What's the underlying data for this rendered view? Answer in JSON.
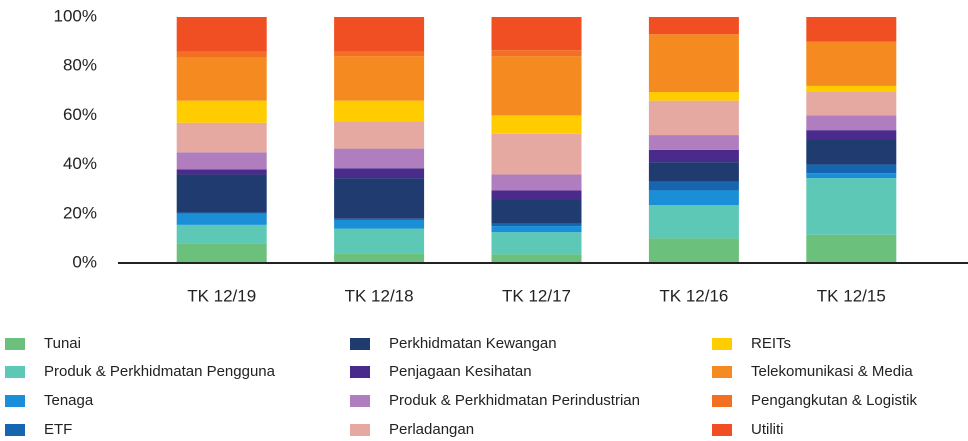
{
  "chart_data": {
    "type": "stacked_bar",
    "categories": [
      "TK 12/19",
      "TK 12/18",
      "TK 12/17",
      "TK 12/16",
      "TK 12/15"
    ],
    "series": [
      {
        "name": "Tunai",
        "color": "#6bc17b",
        "values": [
          8,
          4,
          3.5,
          10,
          11.5
        ]
      },
      {
        "name": "Produk & Perkhidmatan Pengguna",
        "color": "#5ec8b7",
        "values": [
          7.5,
          10,
          9,
          13.5,
          23
        ]
      },
      {
        "name": "Tenaga",
        "color": "#1a8fd8",
        "values": [
          4.5,
          3.5,
          2.5,
          6,
          2
        ]
      },
      {
        "name": "ETF",
        "color": "#1565b0",
        "values": [
          0.5,
          0.5,
          1,
          3.5,
          3.5
        ]
      },
      {
        "name": "Perkhidmatan Kewangan",
        "color": "#1f3b70",
        "values": [
          15.5,
          16.5,
          10,
          8,
          10
        ]
      },
      {
        "name": "Penjagaan Kesihatan",
        "color": "#4a2b8c",
        "values": [
          2,
          4,
          3.5,
          5,
          4
        ]
      },
      {
        "name": "Produk & Perkhidmatan Perindustrian",
        "color": "#b07dbf",
        "values": [
          7,
          8,
          6.5,
          6,
          6
        ]
      },
      {
        "name": "Perladangan",
        "color": "#e5a9a1",
        "values": [
          12,
          11,
          16.5,
          14,
          9.5
        ]
      },
      {
        "name": "REITs",
        "color": "#ffcc00",
        "values": [
          9,
          8.5,
          7.5,
          3.5,
          2.5
        ]
      },
      {
        "name": "Telekomunikasi & Media",
        "color": "#f58a20",
        "values": [
          17.5,
          18,
          24,
          23.5,
          18
        ]
      },
      {
        "name": "Pengangkutan & Logistik",
        "color": "#f26f24",
        "values": [
          2.5,
          2,
          2.5,
          0,
          0
        ]
      },
      {
        "name": "Utiliti",
        "color": "#f04e23",
        "values": [
          14,
          14,
          13.5,
          7,
          10
        ]
      }
    ],
    "ylim": [
      0,
      100
    ],
    "yticks": [
      {
        "value": 0,
        "label": "0%"
      },
      {
        "value": 20,
        "label": "20%"
      },
      {
        "value": 40,
        "label": "40%"
      },
      {
        "value": 60,
        "label": "60%"
      },
      {
        "value": 80,
        "label": "80%"
      },
      {
        "value": 100,
        "label": "100%"
      }
    ],
    "grid": false
  }
}
